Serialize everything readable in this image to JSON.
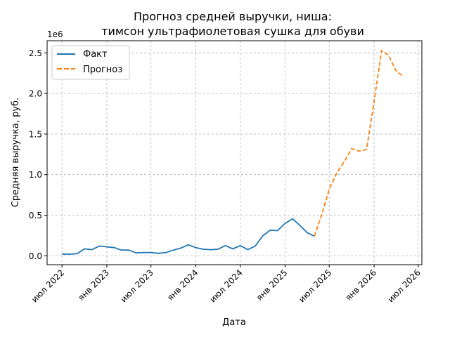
{
  "chart_data": {
    "type": "line",
    "title": "Прогноз средней выручки, ниша:\nтимсон ультрафиолетовая сушка для обуви",
    "xlabel": "Дата",
    "ylabel": "Средняя выручка, руб.",
    "y_offset_label": "1e6",
    "ylim": [
      -110000,
      2650000
    ],
    "xlim": [
      "2022-05-01",
      "2026-07-16"
    ],
    "x_ticks": [
      {
        "date": "2022-07-01",
        "label": "июл 2022"
      },
      {
        "date": "2023-01-01",
        "label": "янв 2023"
      },
      {
        "date": "2023-07-01",
        "label": "июл 2023"
      },
      {
        "date": "2024-01-01",
        "label": "янв 2024"
      },
      {
        "date": "2024-07-01",
        "label": "июл 2024"
      },
      {
        "date": "2025-01-01",
        "label": "янв 2025"
      },
      {
        "date": "2025-07-01",
        "label": "июл 2025"
      },
      {
        "date": "2026-01-01",
        "label": "янв 2026"
      },
      {
        "date": "2026-07-01",
        "label": "июл 2026"
      }
    ],
    "y_ticks": [
      {
        "value": 0,
        "label": "0.0"
      },
      {
        "value": 500000,
        "label": "0.5"
      },
      {
        "value": 1000000,
        "label": "1.0"
      },
      {
        "value": 1500000,
        "label": "1.5"
      },
      {
        "value": 2000000,
        "label": "2.0"
      },
      {
        "value": 2500000,
        "label": "2.5"
      }
    ],
    "grid": true,
    "legend_position": "top-left",
    "series": [
      {
        "name": "Факт",
        "color": "#1f77b4",
        "style": "solid",
        "points": [
          [
            "2022-07-01",
            20000
          ],
          [
            "2022-08-01",
            20000
          ],
          [
            "2022-09-01",
            25000
          ],
          [
            "2022-10-01",
            85000
          ],
          [
            "2022-11-01",
            75000
          ],
          [
            "2022-12-01",
            120000
          ],
          [
            "2023-01-01",
            110000
          ],
          [
            "2023-02-01",
            100000
          ],
          [
            "2023-03-01",
            70000
          ],
          [
            "2023-04-01",
            70000
          ],
          [
            "2023-05-01",
            35000
          ],
          [
            "2023-06-01",
            40000
          ],
          [
            "2023-07-01",
            40000
          ],
          [
            "2023-08-01",
            30000
          ],
          [
            "2023-09-01",
            40000
          ],
          [
            "2023-10-01",
            70000
          ],
          [
            "2023-11-01",
            95000
          ],
          [
            "2023-12-01",
            135000
          ],
          [
            "2024-01-01",
            100000
          ],
          [
            "2024-02-01",
            80000
          ],
          [
            "2024-03-01",
            75000
          ],
          [
            "2024-04-01",
            80000
          ],
          [
            "2024-05-01",
            125000
          ],
          [
            "2024-06-01",
            85000
          ],
          [
            "2024-07-01",
            125000
          ],
          [
            "2024-08-01",
            75000
          ],
          [
            "2024-09-01",
            120000
          ],
          [
            "2024-10-01",
            245000
          ],
          [
            "2024-11-01",
            315000
          ],
          [
            "2024-12-01",
            310000
          ],
          [
            "2025-01-01",
            400000
          ],
          [
            "2025-02-01",
            455000
          ],
          [
            "2025-03-01",
            380000
          ],
          [
            "2025-04-01",
            285000
          ],
          [
            "2025-05-01",
            240000
          ]
        ]
      },
      {
        "name": "Прогноз",
        "color": "#ff7f0e",
        "style": "dashed",
        "points": [
          [
            "2025-05-01",
            240000
          ],
          [
            "2025-06-01",
            510000
          ],
          [
            "2025-07-01",
            820000
          ],
          [
            "2025-08-01",
            1020000
          ],
          [
            "2025-09-01",
            1160000
          ],
          [
            "2025-10-01",
            1320000
          ],
          [
            "2025-11-01",
            1290000
          ],
          [
            "2025-12-01",
            1310000
          ],
          [
            "2026-01-01",
            1900000
          ],
          [
            "2026-02-01",
            2530000
          ],
          [
            "2026-03-01",
            2470000
          ],
          [
            "2026-04-01",
            2280000
          ],
          [
            "2026-05-01",
            2210000
          ]
        ]
      }
    ]
  }
}
